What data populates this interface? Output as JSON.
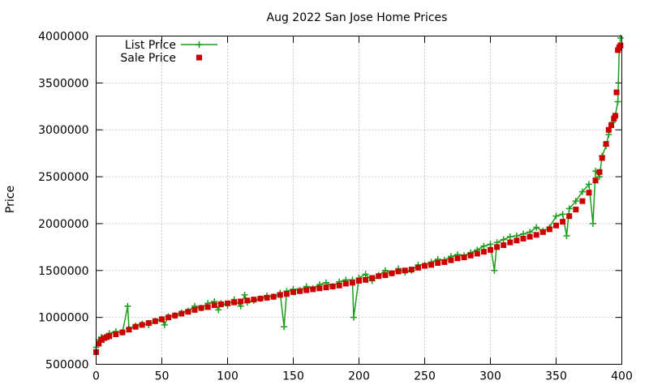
{
  "chart_data": {
    "type": "line",
    "title": "Aug 2022 San Jose Home Prices",
    "xlabel": "",
    "ylabel": "Price",
    "xlim": [
      0,
      400
    ],
    "ylim": [
      500000,
      4000000
    ],
    "x_ticks": [
      0,
      50,
      100,
      150,
      200,
      250,
      300,
      350,
      400
    ],
    "y_ticks": [
      500000,
      1000000,
      1500000,
      2000000,
      2500000,
      3000000,
      3500000,
      4000000
    ],
    "grid": true,
    "legend_position": "top-left",
    "series": [
      {
        "name": "List Price",
        "style": "line-with-plus-markers",
        "color": "#1a9e1a",
        "x": [
          0,
          2,
          4,
          6,
          8,
          10,
          15,
          20,
          24,
          25,
          30,
          35,
          40,
          45,
          50,
          52,
          55,
          60,
          65,
          70,
          75,
          80,
          85,
          90,
          93,
          95,
          100,
          105,
          110,
          113,
          115,
          120,
          125,
          130,
          135,
          140,
          143,
          145,
          150,
          155,
          160,
          165,
          170,
          175,
          180,
          185,
          190,
          195,
          196,
          200,
          205,
          210,
          215,
          220,
          225,
          230,
          235,
          240,
          245,
          250,
          255,
          260,
          265,
          270,
          275,
          280,
          285,
          290,
          295,
          300,
          303,
          305,
          310,
          315,
          320,
          325,
          330,
          335,
          340,
          345,
          350,
          355,
          358,
          360,
          365,
          370,
          375,
          378,
          380,
          383,
          385,
          388,
          390,
          393,
          395,
          397,
          398,
          399
        ],
        "values": [
          680000,
          760000,
          790000,
          760000,
          800000,
          830000,
          850000,
          840000,
          1120000,
          880000,
          910000,
          930000,
          920000,
          960000,
          980000,
          920000,
          1010000,
          1020000,
          1050000,
          1070000,
          1120000,
          1100000,
          1150000,
          1170000,
          1080000,
          1150000,
          1130000,
          1190000,
          1120000,
          1240000,
          1160000,
          1180000,
          1200000,
          1230000,
          1220000,
          1260000,
          900000,
          1280000,
          1300000,
          1290000,
          1330000,
          1310000,
          1350000,
          1370000,
          1330000,
          1380000,
          1400000,
          1400000,
          1000000,
          1420000,
          1460000,
          1390000,
          1450000,
          1500000,
          1470000,
          1520000,
          1480000,
          1500000,
          1560000,
          1560000,
          1590000,
          1620000,
          1610000,
          1650000,
          1670000,
          1660000,
          1690000,
          1720000,
          1760000,
          1780000,
          1500000,
          1800000,
          1830000,
          1860000,
          1870000,
          1890000,
          1910000,
          1960000,
          1920000,
          1960000,
          2080000,
          2100000,
          1870000,
          2160000,
          2240000,
          2340000,
          2420000,
          2000000,
          2560000,
          2500000,
          2720000,
          2830000,
          2950000,
          3080000,
          3150000,
          3300000,
          3850000,
          3980000
        ]
      },
      {
        "name": "Sale Price",
        "style": "square-markers",
        "color": "#cc0000",
        "x": [
          0,
          2,
          4,
          6,
          8,
          10,
          15,
          20,
          25,
          30,
          35,
          40,
          45,
          50,
          55,
          60,
          65,
          70,
          75,
          80,
          85,
          90,
          95,
          100,
          105,
          110,
          115,
          120,
          125,
          130,
          135,
          140,
          145,
          150,
          155,
          160,
          165,
          170,
          175,
          180,
          185,
          190,
          195,
          200,
          205,
          210,
          215,
          220,
          225,
          230,
          235,
          240,
          245,
          250,
          255,
          260,
          265,
          270,
          275,
          280,
          285,
          290,
          295,
          300,
          305,
          310,
          315,
          320,
          325,
          330,
          335,
          340,
          345,
          350,
          355,
          360,
          365,
          370,
          375,
          380,
          383,
          385,
          388,
          390,
          392,
          394,
          395,
          396,
          397,
          398,
          399
        ],
        "values": [
          630000,
          720000,
          760000,
          780000,
          790000,
          800000,
          820000,
          840000,
          870000,
          900000,
          920000,
          940000,
          960000,
          980000,
          1000000,
          1020000,
          1040000,
          1060000,
          1080000,
          1100000,
          1110000,
          1130000,
          1140000,
          1150000,
          1160000,
          1170000,
          1180000,
          1190000,
          1200000,
          1210000,
          1220000,
          1240000,
          1250000,
          1270000,
          1280000,
          1290000,
          1300000,
          1310000,
          1320000,
          1330000,
          1340000,
          1360000,
          1370000,
          1390000,
          1400000,
          1420000,
          1440000,
          1450000,
          1470000,
          1490000,
          1500000,
          1510000,
          1530000,
          1550000,
          1560000,
          1580000,
          1590000,
          1610000,
          1630000,
          1640000,
          1660000,
          1680000,
          1700000,
          1720000,
          1750000,
          1770000,
          1800000,
          1820000,
          1840000,
          1860000,
          1880000,
          1910000,
          1940000,
          1980000,
          2020000,
          2080000,
          2150000,
          2240000,
          2330000,
          2460000,
          2550000,
          2700000,
          2850000,
          3000000,
          3050000,
          3120000,
          3150000,
          3400000,
          3850000,
          3880000,
          3900000
        ]
      }
    ]
  }
}
